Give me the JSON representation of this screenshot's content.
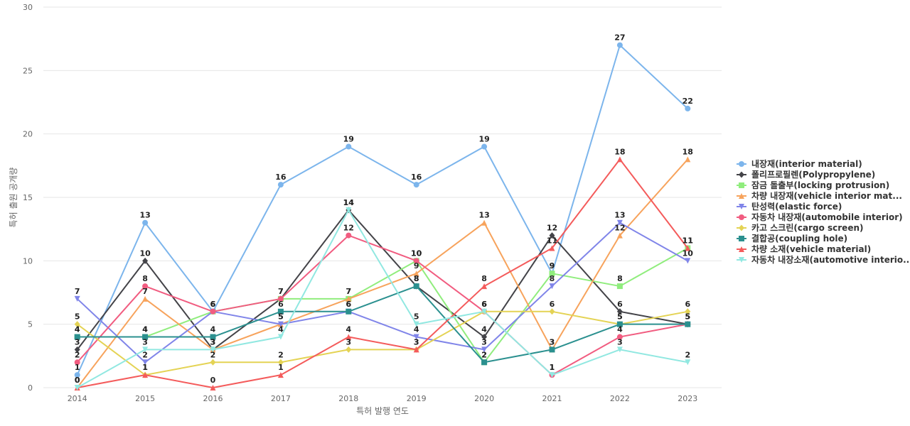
{
  "chart_data": {
    "type": "line",
    "title": "",
    "xlabel": "특허 발행 연도",
    "ylabel": "특허 출원 공개량",
    "ylim": [
      0,
      30
    ],
    "yticks": [
      0,
      5,
      10,
      15,
      20,
      25,
      30
    ],
    "categories": [
      "2014",
      "2015",
      "2016",
      "2017",
      "2018",
      "2019",
      "2020",
      "2021",
      "2022",
      "2023"
    ],
    "legend_position": "right",
    "series": [
      {
        "name": "내장재(interior material)",
        "legend_label": "내장재(interior material)",
        "color": "#7cb5ec",
        "marker": "circle",
        "values": [
          1,
          13,
          6,
          16,
          19,
          16,
          19,
          9,
          27,
          22
        ]
      },
      {
        "name": "폴리프로필렌(Polypropylene)",
        "legend_label": "폴리프로필렌(Polypropylene)",
        "color": "#434348",
        "marker": "diamond",
        "values": [
          3,
          10,
          3,
          7,
          14,
          8,
          4,
          12,
          6,
          5
        ]
      },
      {
        "name": "잠금 돌출부(locking protrusion)",
        "legend_label": "잠금 돌출부(locking protrusion)",
        "color": "#90ed7d",
        "marker": "square",
        "values": [
          4,
          4,
          6,
          7,
          7,
          10,
          2,
          9,
          8,
          11
        ]
      },
      {
        "name": "차량 내장재(vehicle interior material)",
        "legend_label": "차량 내장재(vehicle interior mat...",
        "color": "#f7a35c",
        "marker": "triangle",
        "values": [
          0,
          7,
          3,
          5,
          7,
          9,
          13,
          3,
          12,
          18
        ]
      },
      {
        "name": "탄성력(elastic force)",
        "legend_label": "탄성력(elastic force)",
        "color": "#8085e9",
        "marker": "triangle-down",
        "values": [
          7,
          2,
          6,
          5,
          6,
          4,
          3,
          8,
          13,
          10
        ]
      },
      {
        "name": "자동차 내장재(automobile interior)",
        "legend_label": "자동차 내장재(automobile interior)",
        "color": "#f15c80",
        "marker": "circle",
        "values": [
          2,
          8,
          6,
          7,
          12,
          10,
          6,
          1,
          4,
          5
        ]
      },
      {
        "name": "카고 스크린(cargo screen)",
        "legend_label": "카고 스크린(cargo screen)",
        "color": "#e4d354",
        "marker": "diamond",
        "values": [
          5,
          1,
          2,
          2,
          3,
          3,
          6,
          6,
          5,
          6
        ]
      },
      {
        "name": "결합공(coupling hole)",
        "legend_label": "결합공(coupling hole)",
        "color": "#2b908f",
        "marker": "square",
        "values": [
          4,
          4,
          4,
          6,
          6,
          8,
          2,
          3,
          5,
          5
        ]
      },
      {
        "name": "차량 소재(vehicle material)",
        "legend_label": "차량 소재(vehicle material)",
        "color": "#f45b5b",
        "marker": "triangle",
        "values": [
          0,
          1,
          0,
          1,
          4,
          3,
          8,
          11,
          18,
          11
        ]
      },
      {
        "name": "자동차 내장소재(automotive interior material)",
        "legend_label": "자동차 내장소재(automotive interio...",
        "color": "#91e8e1",
        "marker": "triangle-down",
        "values": [
          0,
          3,
          3,
          4,
          14,
          5,
          6,
          1,
          3,
          2
        ]
      }
    ]
  }
}
